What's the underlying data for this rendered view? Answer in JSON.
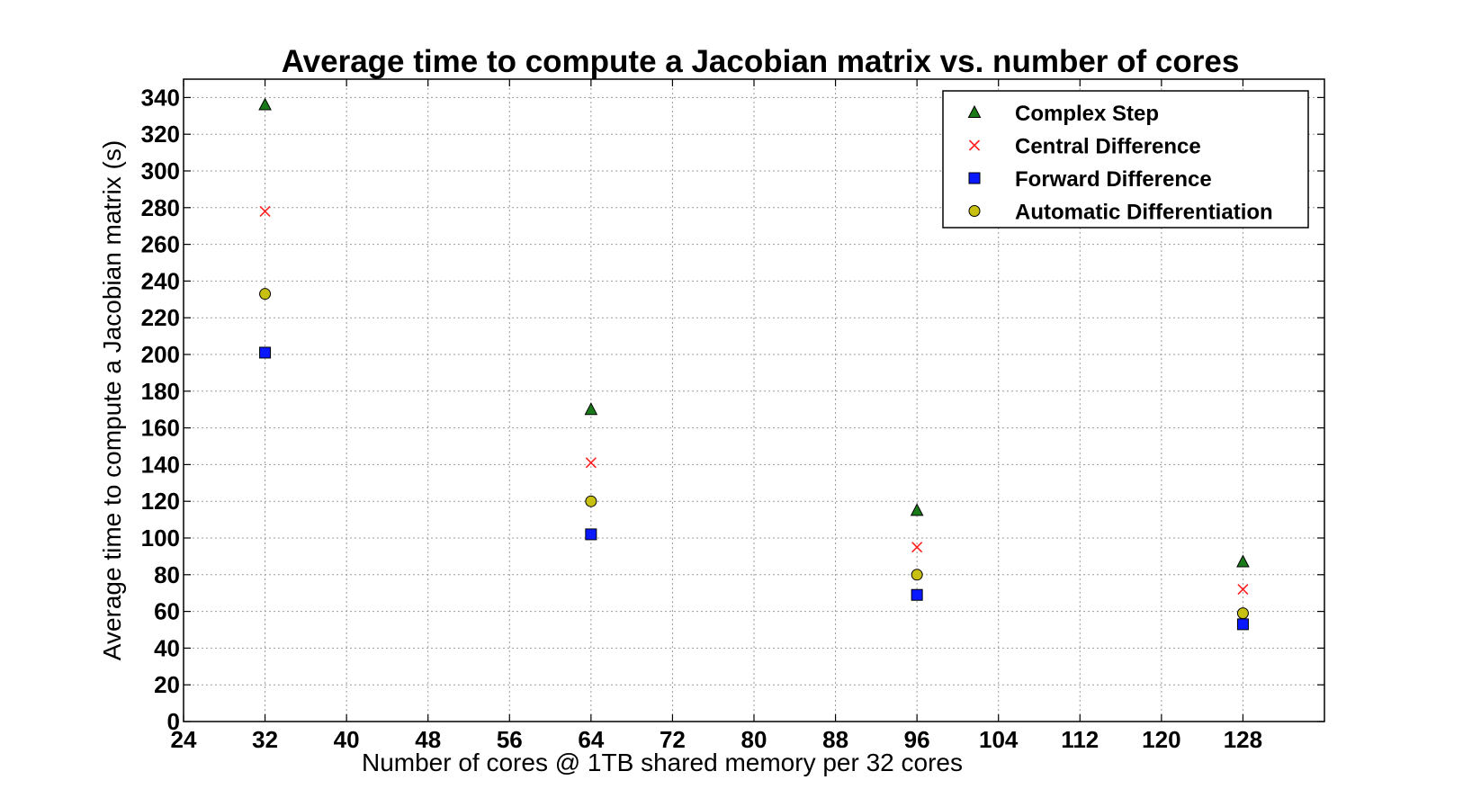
{
  "chart_data": {
    "type": "scatter",
    "title": "Average time to compute a Jacobian matrix vs. number of cores",
    "xlabel": "Number of cores @ 1TB shared memory per 32 cores",
    "ylabel": "Average time to compute a Jacobian matrix (s)",
    "xlim": [
      24,
      136
    ],
    "ylim": [
      0,
      350
    ],
    "xticks": [
      "24",
      "32",
      "40",
      "48",
      "56",
      "64",
      "72",
      "80",
      "88",
      "96",
      "104",
      "112",
      "120",
      "128"
    ],
    "yticks": [
      "0",
      "20",
      "40",
      "60",
      "80",
      "100",
      "120",
      "140",
      "160",
      "180",
      "200",
      "220",
      "240",
      "260",
      "280",
      "300",
      "320",
      "340"
    ],
    "grid": true,
    "legend_position": "top-right",
    "x": [
      32,
      64,
      96,
      128
    ],
    "series": [
      {
        "name": "Complex Step",
        "marker": "triangle",
        "color": "#1a7a1a",
        "values": [
          336,
          170,
          115,
          87
        ]
      },
      {
        "name": "Central Difference",
        "marker": "x",
        "color": "#ff2020",
        "values": [
          278,
          141,
          95,
          72
        ]
      },
      {
        "name": "Forward Difference",
        "marker": "square",
        "color": "#0a18ff",
        "values": [
          201,
          102,
          69,
          53
        ]
      },
      {
        "name": "Automatic Differentiation",
        "marker": "circle",
        "color": "#c8c010",
        "values": [
          233,
          120,
          80,
          59
        ]
      }
    ]
  }
}
